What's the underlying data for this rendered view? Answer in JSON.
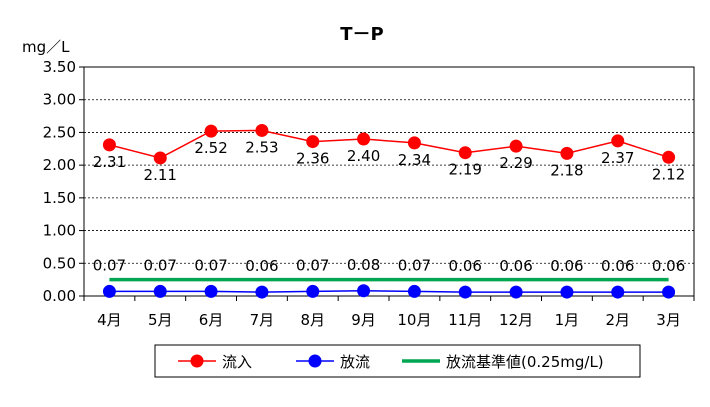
{
  "chart_data": {
    "type": "line",
    "title": "T－P",
    "ylabel": "mg／L",
    "xlabel": "",
    "ylim": [
      0,
      3.5
    ],
    "yticks": [
      "0.00",
      "0.50",
      "1.00",
      "1.50",
      "2.00",
      "2.50",
      "3.00",
      "3.50"
    ],
    "grid": true,
    "legend_position": "bottom",
    "categories": [
      "4月",
      "5月",
      "6月",
      "7月",
      "8月",
      "9月",
      "10月",
      "11月",
      "12月",
      "1月",
      "2月",
      "3月"
    ],
    "series": [
      {
        "name": "流入",
        "color": "#ff0000",
        "values": [
          2.31,
          2.11,
          2.52,
          2.53,
          2.36,
          2.4,
          2.34,
          2.19,
          2.29,
          2.18,
          2.37,
          2.12
        ],
        "labels": [
          "2.31",
          "2.11",
          "2.52",
          "2.53",
          "2.36",
          "2.40",
          "2.34",
          "2.19",
          "2.29",
          "2.18",
          "2.37",
          "2.12"
        ]
      },
      {
        "name": "放流",
        "color": "#0000ff",
        "values": [
          0.07,
          0.07,
          0.07,
          0.06,
          0.07,
          0.08,
          0.07,
          0.06,
          0.06,
          0.06,
          0.06,
          0.06
        ],
        "labels": [
          "0.07",
          "0.07",
          "0.07",
          "0.06",
          "0.07",
          "0.08",
          "0.07",
          "0.06",
          "0.06",
          "0.06",
          "0.06",
          "0.06"
        ]
      },
      {
        "name": "放流基準値(0.25mg/L)",
        "color": "#00a651",
        "values": [
          0.25,
          0.25,
          0.25,
          0.25,
          0.25,
          0.25,
          0.25,
          0.25,
          0.25,
          0.25,
          0.25,
          0.25
        ]
      }
    ]
  }
}
